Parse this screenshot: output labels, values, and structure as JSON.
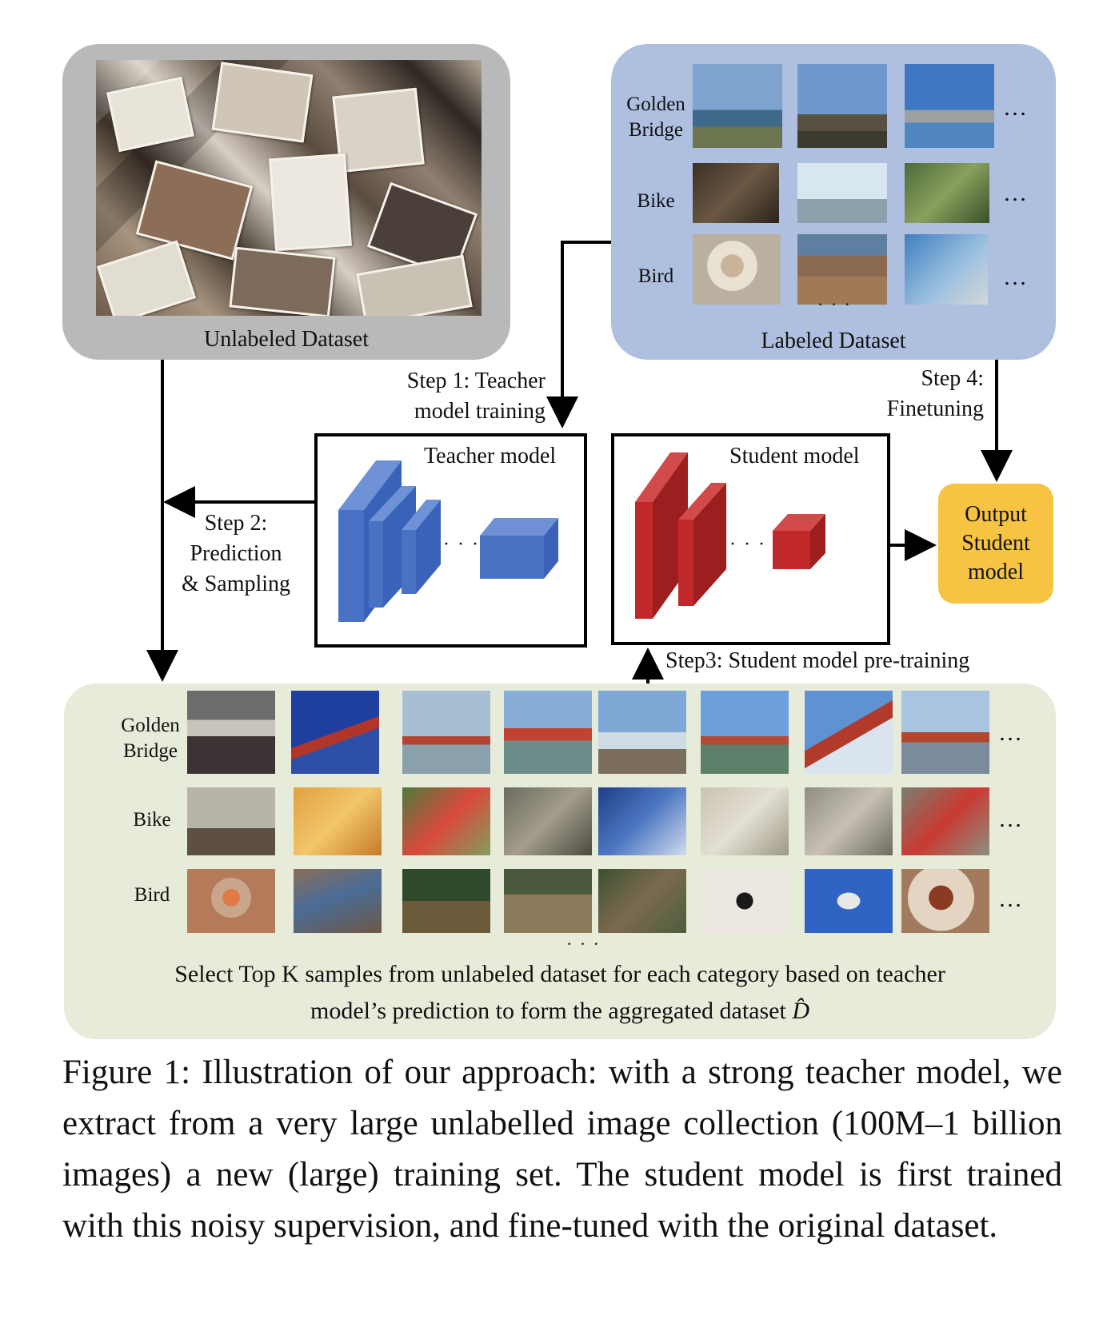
{
  "unlabeled": {
    "title": "Unlabeled Dataset"
  },
  "labeled": {
    "title": "Labeled Dataset",
    "rows": [
      {
        "label": "Golden\nBridge"
      },
      {
        "label": "Bike"
      },
      {
        "label": "Bird"
      }
    ],
    "more": "…",
    "vdots": "· · ·"
  },
  "steps": {
    "step1": "Step 1: Teacher\nmodel training",
    "step2": "Step 2:\nPrediction\n& Sampling",
    "step3": "Step3: Student model pre-training",
    "step4": "Step 4:\nFinetuning"
  },
  "teacher": {
    "title": "Teacher model",
    "ellipsis": "· · ·"
  },
  "student": {
    "title": "Student model",
    "ellipsis": "· · ·"
  },
  "output": {
    "label": "Output\nStudent\nmodel"
  },
  "aggregated": {
    "rows": [
      {
        "label": "Golden\nBridge"
      },
      {
        "label": "Bike"
      },
      {
        "label": "Bird"
      }
    ],
    "more": "…",
    "vdots": "· · ·",
    "description_line1": "Select Top K samples from unlabeled dataset for each category based on teacher",
    "description_line2": "model’s prediction to form the aggregated dataset",
    "dataset_symbol": "D̂"
  },
  "caption": "Figure 1: Illustration of our approach: with a strong teacher model, we extract from a very large unlabelled image collection (100M–1 billion images) a new (large) training set. The student model is first trained with this noisy supervision, and fine-tuned with the original dataset.",
  "colors": {
    "unlabeled_panel": "#b9b9b9",
    "labeled_panel": "#aebfdf",
    "aggregated_panel": "#e6ecd9",
    "teacher_blocks": "#4a72c4",
    "student_blocks": "#c0282a",
    "output_box": "#f6c342"
  }
}
